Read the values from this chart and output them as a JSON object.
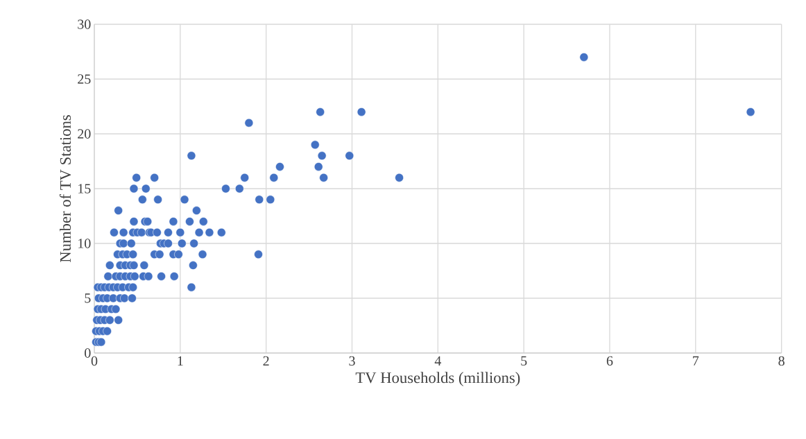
{
  "chart_data": {
    "type": "scatter",
    "xlabel": "TV Households (millions)",
    "ylabel": "Number of TV Stations",
    "xlim": [
      0,
      8
    ],
    "ylim": [
      0,
      30
    ],
    "xticks": [
      0,
      1,
      2,
      3,
      4,
      5,
      6,
      7,
      8
    ],
    "yticks": [
      0,
      5,
      10,
      15,
      20,
      25,
      30
    ],
    "grid": true,
    "series": [
      {
        "color": "#4472c4",
        "x": [
          0.02,
          0.05,
          0.08,
          0.02,
          0.06,
          0.1,
          0.15,
          0.03,
          0.07,
          0.12,
          0.18,
          0.28,
          0.04,
          0.08,
          0.13,
          0.2,
          0.25,
          0.05,
          0.1,
          0.15,
          0.22,
          0.3,
          0.35,
          0.44,
          0.04,
          0.08,
          0.12,
          0.17,
          0.22,
          0.27,
          0.33,
          0.4,
          0.45,
          1.13,
          0.16,
          0.25,
          0.3,
          0.36,
          0.42,
          0.47,
          0.57,
          0.63,
          0.78,
          0.93,
          0.18,
          0.3,
          0.36,
          0.42,
          0.46,
          0.58,
          1.15,
          0.27,
          0.33,
          0.38,
          0.45,
          0.7,
          0.76,
          0.92,
          0.98,
          1.26,
          1.91,
          0.3,
          0.34,
          0.43,
          0.77,
          0.81,
          0.86,
          1.02,
          1.16,
          0.23,
          0.34,
          0.45,
          0.5,
          0.55,
          0.64,
          0.66,
          0.73,
          0.86,
          1.0,
          1.22,
          1.34,
          1.48,
          0.46,
          0.59,
          0.62,
          0.92,
          1.11,
          1.27,
          0.28,
          1.19,
          0.56,
          0.74,
          1.05,
          1.92,
          2.05,
          0.46,
          0.6,
          1.53,
          1.69,
          0.49,
          0.7,
          1.75,
          2.09,
          2.67,
          3.55,
          2.16,
          2.61,
          1.13,
          2.65,
          2.97,
          2.57,
          1.8,
          2.63,
          3.11,
          7.64,
          5.7
        ],
        "values": [
          1,
          1,
          1,
          2,
          2,
          2,
          2,
          3,
          3,
          3,
          3,
          3,
          4,
          4,
          4,
          4,
          4,
          5,
          5,
          5,
          5,
          5,
          5,
          5,
          6,
          6,
          6,
          6,
          6,
          6,
          6,
          6,
          6,
          6,
          7,
          7,
          7,
          7,
          7,
          7,
          7,
          7,
          7,
          7,
          8,
          8,
          8,
          8,
          8,
          8,
          8,
          9,
          9,
          9,
          9,
          9,
          9,
          9,
          9,
          9,
          9,
          10,
          10,
          10,
          10,
          10,
          10,
          10,
          10,
          11,
          11,
          11,
          11,
          11,
          11,
          11,
          11,
          11,
          11,
          11,
          11,
          11,
          12,
          12,
          12,
          12,
          12,
          12,
          13,
          13,
          14,
          14,
          14,
          14,
          14,
          15,
          15,
          15,
          15,
          16,
          16,
          16,
          16,
          16,
          16,
          17,
          17,
          18,
          18,
          18,
          19,
          21,
          22,
          22,
          22,
          27
        ]
      }
    ]
  }
}
